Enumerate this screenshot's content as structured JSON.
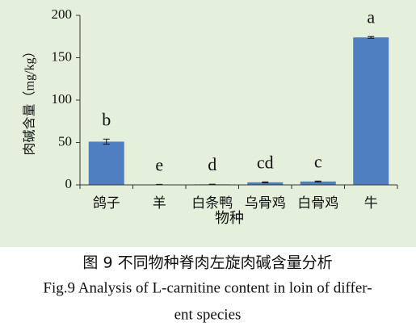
{
  "chart_data": {
    "type": "bar",
    "y_label": "肉碱含量（mg/kg）",
    "x_label": "物种",
    "categories": [
      "鸽子",
      "羊",
      "白条鸭",
      "乌骨鸡",
      "白骨鸡",
      "牛"
    ],
    "values": [
      51,
      0.4,
      0.6,
      3,
      4,
      174
    ],
    "errors": [
      3,
      0.2,
      0.2,
      0.5,
      0.5,
      1
    ],
    "significance": [
      "b",
      "e",
      "d",
      "cd",
      "c",
      "a"
    ],
    "color": "#4f7fc1",
    "ylim": [
      0,
      200
    ],
    "yticks": [
      0,
      50,
      100,
      150,
      200
    ]
  },
  "caption": {
    "title": "图 9  不同物种脊肉左旋肉碱含量分析",
    "lines": [
      "Fig.9 Analysis of L-carnitine content in loin of differ-",
      "ent species"
    ]
  }
}
